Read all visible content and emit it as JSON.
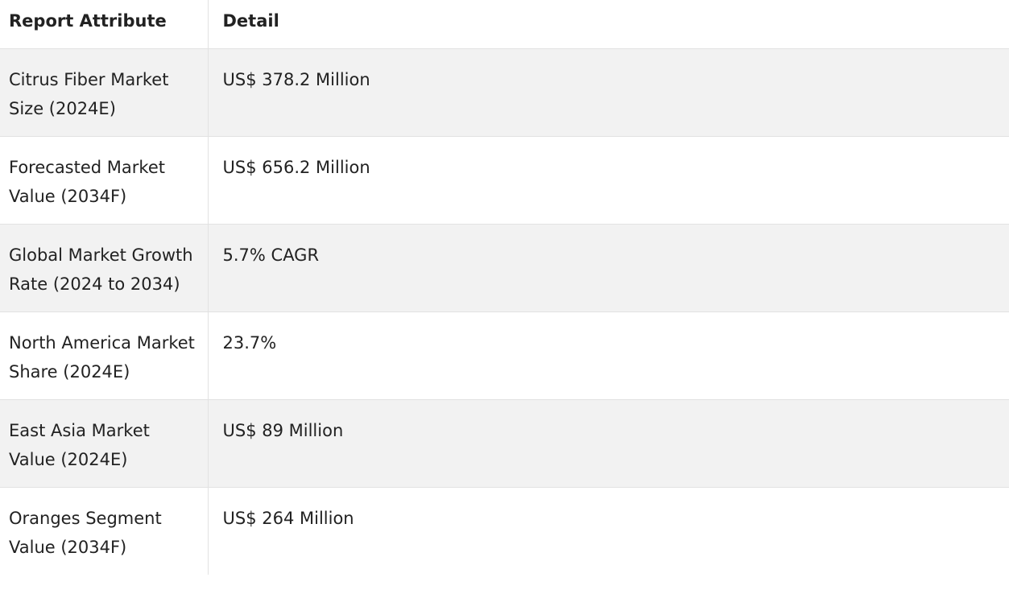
{
  "table": {
    "headers": [
      "Report Attribute",
      "Detail"
    ],
    "rows": [
      {
        "attribute": "Citrus Fiber Market Size (2024E)",
        "detail": "US$ 378.2 Million"
      },
      {
        "attribute": "Forecasted Market Value (2034F)",
        "detail": "US$ 656.2 Million"
      },
      {
        "attribute": "Global Market Growth Rate (2024 to 2034)",
        "detail": "5.7% CAGR"
      },
      {
        "attribute": "North America Market Share (2024E)",
        "detail": "23.7%"
      },
      {
        "attribute": "East Asia Market Value (2024E)",
        "detail": "US$ 89 Million"
      },
      {
        "attribute": "Oranges Segment Value (2034F)",
        "detail": "US$ 264 Million"
      }
    ]
  },
  "colors": {
    "text": "#222222",
    "striped_row": "#f2f2f2",
    "border": "#e2e2e2"
  }
}
